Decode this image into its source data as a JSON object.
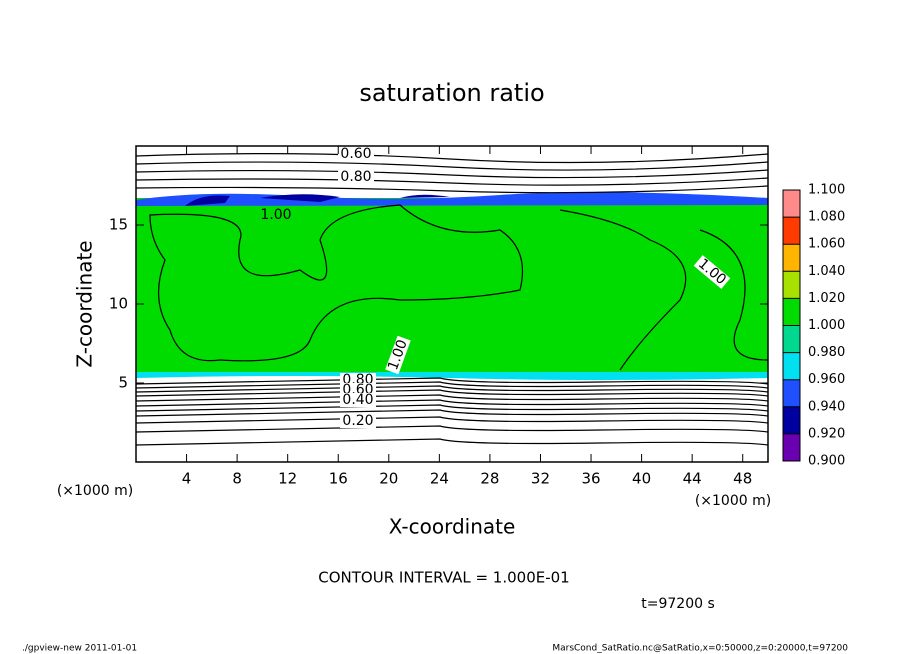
{
  "chart_data": {
    "type": "contour",
    "title": "saturation ratio",
    "xlabel": "X-coordinate",
    "ylabel": "Z-coordinate",
    "x_unit": "(×1000 m)",
    "y_unit": "(×1000 m)",
    "xlim": [
      0,
      50
    ],
    "xticks": [
      4,
      8,
      12,
      16,
      20,
      24,
      28,
      32,
      36,
      40,
      44,
      48
    ],
    "ylim": [
      0,
      20
    ],
    "yticks": [
      5,
      10,
      15
    ],
    "contour_labels": [
      "0.60",
      "0.80",
      "1.00",
      "1.00",
      "1.00",
      "0.80",
      "0.60",
      "0.40",
      "0.20"
    ],
    "colorbar": {
      "levels": [
        {
          "value": 0.9,
          "label": "0.900"
        },
        {
          "value": 0.92,
          "label": "0.920"
        },
        {
          "value": 0.94,
          "label": "0.940"
        },
        {
          "value": 0.96,
          "label": "0.960"
        },
        {
          "value": 0.98,
          "label": "0.980"
        },
        {
          "value": 1.0,
          "label": "1.000"
        },
        {
          "value": 1.02,
          "label": "1.020"
        },
        {
          "value": 1.04,
          "label": "1.040"
        },
        {
          "value": 1.06,
          "label": "1.060"
        },
        {
          "value": 1.08,
          "label": "1.080"
        },
        {
          "value": 1.1,
          "label": "1.100"
        }
      ],
      "colors": [
        "#6a00b0",
        "#0000a0",
        "#1e50ff",
        "#00e0f0",
        "#00d890",
        "#00dc00",
        "#a8e000",
        "#ffb400",
        "#ff3c00",
        "#ff8a8a"
      ]
    },
    "contour_interval": "CONTOUR INTERVAL = 1.000E-01",
    "time_label": "t=97200 s",
    "footer_left": "./gpview-new  2011-01-01",
    "footer_right": "MarsCond_SatRatio.nc@SatRatio,x=0:50000,z=0:20000,t=97200"
  }
}
